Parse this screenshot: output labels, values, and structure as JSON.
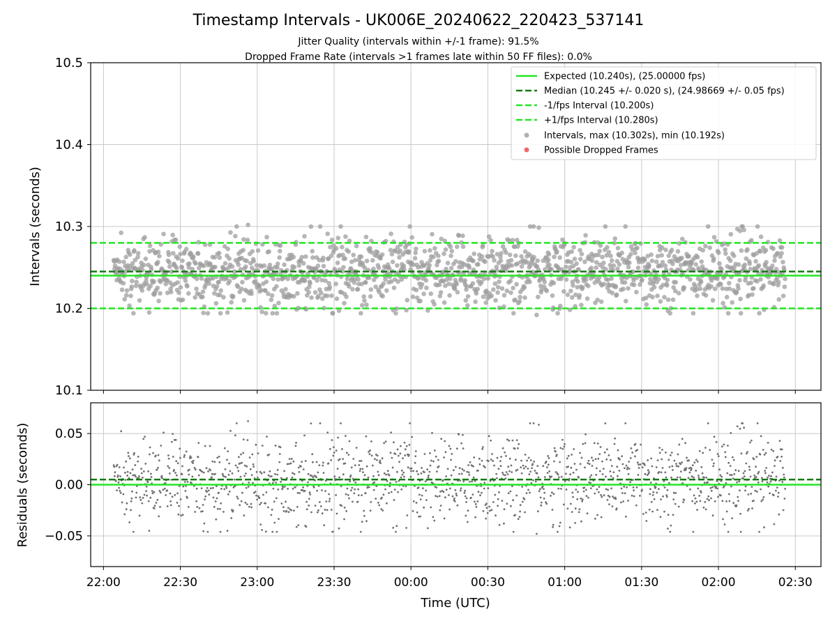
{
  "chart_data": {
    "title": "Timestamp Intervals - UK006E_20240622_220423_537141",
    "subtitle_lines": [
      "Jitter Quality (intervals within +/-1 frame): 91.5%",
      "Dropped Frame Rate (intervals >1 frames late within 50 FF files): 0.0%"
    ],
    "colors": {
      "expected": "#22e622",
      "median": "#137a13",
      "fps_bounds": "#22e622",
      "intervals_points": "#9e9e9e",
      "dropped_points": "#f06a6a",
      "residual_points": "#707070",
      "grid": "#c8c8c8"
    },
    "xaxis": {
      "label": "Time (UTC)",
      "ticks": [
        "22:00",
        "22:30",
        "23:00",
        "23:30",
        "00:00",
        "00:30",
        "01:00",
        "01:30",
        "02:00",
        "02:30"
      ],
      "range": [
        "2024-06-22T21:55",
        "2024-06-23T02:40"
      ]
    },
    "series_time_range": [
      "2024-06-22T22:04",
      "2024-06-23T02:26"
    ],
    "top_panel": {
      "type": "scatter",
      "ylabel": "Intervals (seconds)",
      "ylim": [
        10.1,
        10.5
      ],
      "yticks": [
        "10.1",
        "10.2",
        "10.3",
        "10.4",
        "10.5"
      ],
      "grid": true,
      "expected": 10.24,
      "median": 10.245,
      "lower_bound": 10.2,
      "upper_bound": 10.28,
      "point_count": 1536,
      "interval_max": 10.302,
      "interval_min": 10.192,
      "legend": {
        "position": "top-right",
        "entries": [
          {
            "label": "Expected (10.240s), (25.00000 fps)",
            "style": "solid-line"
          },
          {
            "label": "Median (10.245 +/- 0.020 s), (24.98669 +/- 0.05 fps)",
            "style": "dashed-dark-line"
          },
          {
            "label": "-1/fps Interval (10.200s)",
            "style": "dashed-line"
          },
          {
            "label": "+1/fps Interval (10.280s)",
            "style": "dashed-line"
          },
          {
            "label": "Intervals, max (10.302s), min (10.192s)",
            "style": "grey-marker"
          },
          {
            "label": "Possible Dropped Frames",
            "style": "red-marker"
          }
        ]
      }
    },
    "bottom_panel": {
      "type": "scatter",
      "ylabel": "Residuals (seconds)",
      "ylim": [
        -0.08,
        0.08
      ],
      "yticks": [
        "0.05",
        "0.00",
        "−0.05"
      ],
      "ytick_values": [
        0.05,
        0.0,
        -0.05
      ],
      "grid": true,
      "expected": 0.0,
      "median": 0.005
    }
  }
}
